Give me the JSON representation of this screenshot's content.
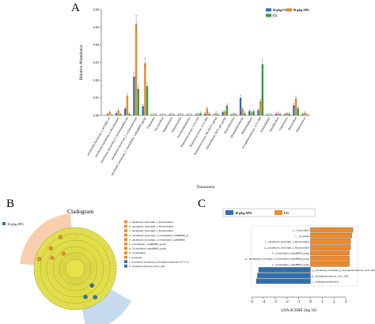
{
  "panel_labels": {
    "a": "A",
    "b": "B",
    "c": "C"
  },
  "colors": {
    "blue": "#2e6fb0",
    "orange": "#ee8a2a",
    "green": "#2ea043",
    "cladogram_yellow": "#e6e34a",
    "cladogram_orange_sector": "#f6c7a0",
    "cladogram_blue_sector": "#bcd4ea"
  },
  "chart_data": [
    {
      "panel": "A",
      "type": "bar",
      "ylabel": "Relative Abundance",
      "xlabel": "Taxonomy",
      "ylim": [
        0,
        0.06
      ],
      "yticks": [
        "0.00",
        "0.01",
        "0.02",
        "0.03",
        "0.04",
        "0.05",
        "0.06"
      ],
      "legend": [
        "30 g/kg FAPG",
        "30 g/kg APG",
        "CG"
      ],
      "categories": [
        "uncultured_bacterium_c_WCHB1-41",
        "uncultured_bacterium_o_Bacteroidales",
        "uncultured_bacterium_f_Christensenellaceae",
        "uncultured_bacterium_f_Lachnospiraceae",
        "uncultured_bacterium_f_Clostridiales_vadinBB60_group",
        "Treponema",
        "Succinivibrio",
        "Sphaerochaeta",
        "Shuttleworthia",
        "Saccharofermentans",
        "Ruminococcaceae_UCG-010",
        "Ruminococcaceae_UCG-004",
        "Ruminococcaceae_NK4A214_group",
        "Rikenellaceae_RC9_gut_group",
        "Marvinbryantia",
        "Methanobrevibacter",
        "Methanosphaera",
        "Erysipelotrichaceae_UCG-004",
        "Enterorhabdus",
        "Desulfovibrio",
        "Coprococcus",
        "Butyrivibrio",
        "Anaerotruncus"
      ],
      "series": [
        {
          "name": "30 g/kg FAPG",
          "values": [
            0.0005,
            0.0012,
            0.0038,
            0.022,
            0.0052,
            0.0003,
            0.0002,
            0.0004,
            0.0003,
            0.0003,
            0.0005,
            0.0009,
            0.0003,
            0.0018,
            0.0004,
            0.01,
            0.0025,
            0.003,
            0.0004,
            0.0008,
            0.0006,
            0.0058,
            0.0007
          ]
        },
        {
          "name": "CG",
          "values": [
            0.0019,
            0.0028,
            0.011,
            0.052,
            0.0295,
            0.0004,
            0.0003,
            0.0005,
            0.0004,
            0.0004,
            0.0006,
            0.0038,
            0.0012,
            0.0022,
            0.0009,
            0.0035,
            0.0016,
            0.008,
            0.0003,
            0.0012,
            0.0011,
            0.0095,
            0.0014
          ]
        },
        {
          "name": "30 g/kg APG",
          "values": [
            0.0002,
            0.0007,
            0.0008,
            0.015,
            0.0165,
            0.0003,
            0.0001,
            0.0003,
            0.0003,
            0.0002,
            0.0012,
            0.0009,
            0.0004,
            0.0055,
            0.0005,
            0.0012,
            0.0024,
            0.029,
            0.0003,
            0.0006,
            0.0008,
            0.004,
            0.0004
          ]
        }
      ]
    },
    {
      "panel": "C",
      "type": "bar",
      "orientation": "horizontal",
      "xlabel": "LDA SCORE (log 10)",
      "xlim": [
        -5,
        4
      ],
      "xticks": [
        "-5",
        "-4",
        "-3",
        "-2",
        "-1",
        "0",
        "1",
        "2",
        "3"
      ],
      "legend": [
        "30 g/kg APG",
        "CG"
      ],
      "categories": [
        "o__Clostridiales",
        "c__Clostridia",
        "f__uncultured_bacterium_o_Bacteroidales",
        "g__uncultured_bacterium_o_Bacteroidales",
        "f__Clostridiales_vadinBB60_group",
        "g__uncultured_bacterium_f_Clostridiales_vadinBB60_group",
        "f__Clostridiales_vadinBB60_group",
        "g__uncultured_bacterium_g_Erysipelotrichaceae_UCG_004",
        "g__Erysipelotrichaceae_UCG_004",
        "c__Gammaproteobacteria"
      ],
      "values": [
        3.6,
        3.5,
        3.4,
        3.4,
        3.3,
        3.3,
        3.3,
        -4.4,
        -4.5,
        -4.6
      ],
      "groups": [
        "CG",
        "CG",
        "CG",
        "CG",
        "CG",
        "CG",
        "CG",
        "30 g/kg APG",
        "30 g/kg APG",
        "30 g/kg APG"
      ]
    }
  ],
  "cladogram": {
    "title": "Cladogram",
    "legend_title": "30 g/kg APG",
    "legend_items": [
      {
        "letter": "a",
        "text": "a : uncultured_bacterium_o_Bacteroidales"
      },
      {
        "letter": "b",
        "text": "b : uncultured_bacterium_o_Bacteroidales"
      },
      {
        "letter": "c",
        "text": "c : uncultured_bacterium_o_Bacteroidales"
      },
      {
        "letter": "d",
        "text": "d : uncultured_bacterium_f_Clostridiales_vadinBB60_gr"
      },
      {
        "letter": "e",
        "text": "e : uncultured_bacterium_f_Clostridiales_vadinBB60"
      },
      {
        "letter": "f",
        "text": "f : Clostridiales_vadinBB60_group"
      },
      {
        "letter": "g",
        "text": "g : Clostridiales_vadinBB60_group"
      },
      {
        "letter": "h",
        "text": "h : Clostridiales"
      },
      {
        "letter": "i",
        "text": "i : Clostridia"
      },
      {
        "letter": "j",
        "text": "j : uncultured_bacterium_g_Erysipelotrichaceae_UCG_0"
      },
      {
        "letter": "k",
        "text": "k : Erysipelotrichaceae_UCG_004"
      }
    ]
  }
}
